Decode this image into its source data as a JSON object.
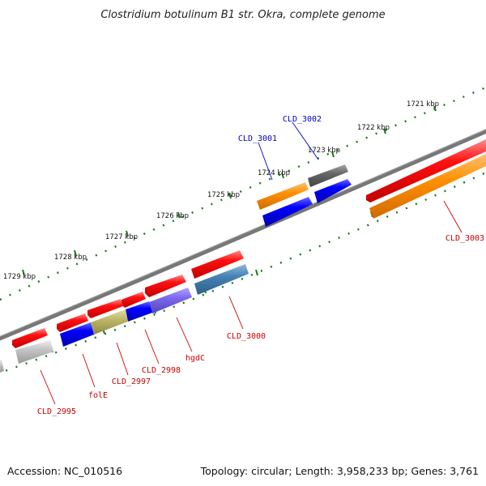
{
  "title": "Clostridium botulinum B1 str. Okra, complete genome",
  "footer": {
    "accession": "Accession: NC_010516",
    "topology": "Topology: circular; Length: 3,958,233 bp; Genes: 3,761"
  },
  "ticks": [
    "1721 kbp",
    "1722 kbp",
    "1723 kbp",
    "1724 kbp",
    "1725 kbp",
    "1726 kbp",
    "1727 kbp",
    "1728 kbp",
    "1729 kbp"
  ],
  "labels": {
    "cld3001": "CLD_3001",
    "cld3002": "CLD_3002",
    "cld3003": "CLD_3003",
    "cld3000": "CLD_3000",
    "hgdc": "hgdC",
    "cld2998": "CLD_2998",
    "cld2997": "CLD_2997",
    "fole": "folE",
    "cld2995": "CLD_2995"
  },
  "colors": {
    "backbone": "#777777",
    "tick": "#1a7a1a",
    "gene_red": "#ee0000",
    "gene_blue": "#0000ee",
    "gene_orange": "#ff8c00",
    "gene_grey": "#666666",
    "gene_steel": "#4682b4",
    "gene_purple": "#7b68ee",
    "gene_khaki": "#bdb76b",
    "gene_silver": "#bbbbbb",
    "label_red": "#cc0000",
    "label_blue": "#0000cc"
  }
}
